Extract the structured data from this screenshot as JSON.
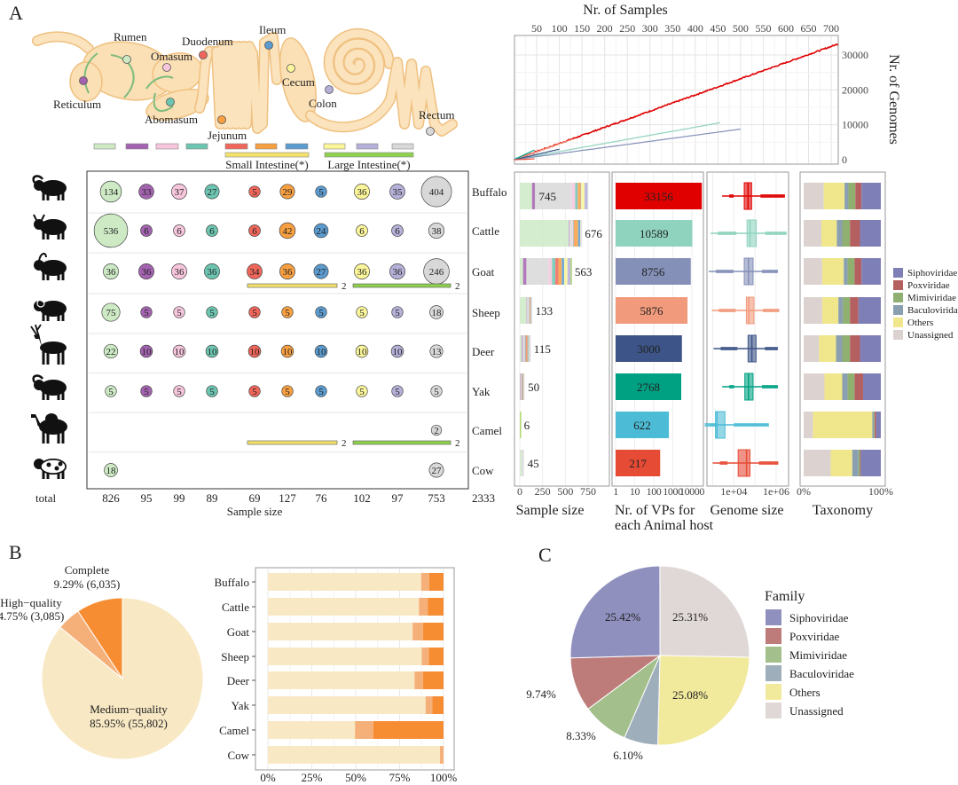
{
  "panel_labels": {
    "a": "A",
    "b": "B",
    "c": "C"
  },
  "gut": {
    "organs": [
      {
        "name": "Rumen",
        "color": "#cdeac5"
      },
      {
        "name": "Reticulum",
        "color": "#a463b0"
      },
      {
        "name": "Omasum",
        "color": "#f7c6dd"
      },
      {
        "name": "Abomasum",
        "color": "#6cc5b0"
      },
      {
        "name": "Duodenum",
        "color": "#f0665a"
      },
      {
        "name": "Jejunum",
        "color": "#f8a040"
      },
      {
        "name": "Ileum",
        "color": "#5b9bcf"
      },
      {
        "name": "Cecum",
        "color": "#fbf69a"
      },
      {
        "name": "Colon",
        "color": "#b4b0d8"
      },
      {
        "name": "Rectum",
        "color": "#d8d8d8"
      }
    ],
    "groups": [
      {
        "label": "Small Intestine(*)",
        "color": "#f5e26a"
      },
      {
        "label": "Large Intestine(*)",
        "color": "#8fd14f"
      }
    ]
  },
  "animals": [
    {
      "name": "Buffalo",
      "icon": "buffalo-icon"
    },
    {
      "name": "Cattle",
      "icon": "cattle-icon"
    },
    {
      "name": "Goat",
      "icon": "goat-icon"
    },
    {
      "name": "Sheep",
      "icon": "sheep-icon"
    },
    {
      "name": "Deer",
      "icon": "deer-icon"
    },
    {
      "name": "Yak",
      "icon": "yak-icon"
    },
    {
      "name": "Camel",
      "icon": "camel-icon"
    },
    {
      "name": "Cow",
      "icon": "cow-icon"
    }
  ],
  "chart_data": [
    {
      "id": "sample_bubbles",
      "type": "bubble",
      "rows": [
        "Buffalo",
        "Cattle",
        "Goat",
        "Sheep",
        "Deer",
        "Yak",
        "Camel",
        "Cow"
      ],
      "columns": [
        "Rumen",
        "Reticulum",
        "Omasum",
        "Abomasum",
        "Duodenum",
        "Jejunum",
        "Ileum",
        "Cecum",
        "Colon",
        "Rectum"
      ],
      "values": [
        [
          134,
          33,
          37,
          27,
          5,
          29,
          5,
          36,
          35,
          404
        ],
        [
          536,
          6,
          6,
          6,
          6,
          42,
          24,
          6,
          6,
          38
        ],
        [
          36,
          36,
          36,
          36,
          34,
          36,
          27,
          36,
          36,
          246
        ],
        [
          75,
          5,
          5,
          5,
          5,
          5,
          5,
          5,
          5,
          18
        ],
        [
          22,
          10,
          10,
          10,
          10,
          10,
          10,
          10,
          10,
          13
        ],
        [
          5,
          5,
          5,
          5,
          5,
          5,
          5,
          5,
          5,
          5
        ],
        [
          null,
          null,
          null,
          null,
          null,
          null,
          null,
          null,
          null,
          2
        ],
        [
          18,
          null,
          null,
          null,
          null,
          null,
          null,
          null,
          null,
          27
        ]
      ],
      "pooled": [
        {
          "row": "Goat",
          "group": "Small Intestine(*)",
          "value": 2
        },
        {
          "row": "Goat",
          "group": "Large Intestine(*)",
          "value": 2
        },
        {
          "row": "Camel",
          "group": "Small Intestine(*)",
          "value": 2
        },
        {
          "row": "Camel",
          "group": "Large Intestine(*)",
          "value": 2
        }
      ],
      "column_totals": [
        "826",
        "95",
        "99",
        "89",
        "69",
        "127",
        "76",
        "102",
        "97",
        "753"
      ],
      "grand_total": "2333",
      "row_total_label": "total",
      "xlabel": "Sample size"
    },
    {
      "id": "accumulation",
      "type": "line",
      "title": "Nr. of Samples",
      "ylabel": "Nr. of Genomes",
      "xticks": [
        "50",
        "100",
        "150",
        "200",
        "250",
        "300",
        "350",
        "400",
        "450",
        "500",
        "550",
        "600",
        "650",
        "700"
      ],
      "yticks": [
        "0",
        "10000",
        "20000",
        "30000"
      ],
      "xlim": [
        0,
        720
      ],
      "ylim": [
        0,
        34000
      ],
      "grid": true,
      "series": [
        {
          "color": "#e00000",
          "x": [
            0,
            715
          ],
          "y": [
            0,
            33156
          ]
        },
        {
          "color": "#8fd3bf",
          "x": [
            0,
            455
          ],
          "y": [
            0,
            10589
          ]
        },
        {
          "color": "#8490b8",
          "x": [
            0,
            500
          ],
          "y": [
            0,
            8756
          ]
        },
        {
          "color": "#f29a7c",
          "x": [
            0,
            130
          ],
          "y": [
            0,
            5876
          ]
        },
        {
          "color": "#3c5487",
          "x": [
            0,
            100
          ],
          "y": [
            0,
            3000
          ]
        },
        {
          "color": "#00a183",
          "x": [
            0,
            45
          ],
          "y": [
            0,
            2768
          ]
        },
        {
          "color": "#4cbcd6",
          "x": [
            0,
            6
          ],
          "y": [
            0,
            622
          ]
        },
        {
          "color": "#e64b35",
          "x": [
            0,
            45
          ],
          "y": [
            0,
            217
          ]
        }
      ]
    },
    {
      "id": "sample_size_bars",
      "type": "bar",
      "stacked": true,
      "xlabel": "Sample size",
      "xticks": [
        "0",
        "250",
        "500",
        "750"
      ],
      "xlim": [
        0,
        950
      ],
      "categories": [
        "Buffalo",
        "Cattle",
        "Goat",
        "Sheep",
        "Deer",
        "Yak",
        "Camel",
        "Cow"
      ],
      "totals": [
        "745",
        "676",
        "563",
        "133",
        "115",
        "50",
        "6",
        "45"
      ]
    },
    {
      "id": "vp_bars",
      "type": "bar",
      "xscale": "log",
      "xlabel": "Nr. of VPs for",
      "xlabel2": "each Animal host",
      "xticks": [
        "1",
        "10",
        "100",
        "1000",
        "10000"
      ],
      "categories": [
        "Buffalo",
        "Cattle",
        "Goat",
        "Sheep",
        "Deer",
        "Yak",
        "Camel",
        "Cow"
      ],
      "values": [
        33156,
        10589,
        8756,
        5876,
        3000,
        2768,
        622,
        217
      ],
      "labels": [
        "33156",
        "10589",
        "8756",
        "5876",
        "3000",
        "2768",
        "622",
        "217"
      ],
      "colors": [
        "#e00000",
        "#8fd3bf",
        "#8490b8",
        "#f29a7c",
        "#3c5487",
        "#00a183",
        "#4cbcd6",
        "#e64b35"
      ]
    },
    {
      "id": "genome_size",
      "type": "box",
      "xscale": "log",
      "xlabel": "Genome size",
      "xticks": [
        "1e+04",
        "1e+06"
      ],
      "categories": [
        "Buffalo",
        "Cattle",
        "Goat",
        "Sheep",
        "Deer",
        "Yak",
        "Camel",
        "Cow"
      ],
      "stats": [
        {
          "min": 2800,
          "q1": 31000,
          "median": 47000,
          "q3": 69000,
          "max": 2600000
        },
        {
          "min": 800,
          "q1": 42000,
          "median": 58000,
          "q3": 115000,
          "max": 3100000
        },
        {
          "min": 650,
          "q1": 31000,
          "median": 49000,
          "q3": 81000,
          "max": 1200000
        },
        {
          "min": 900,
          "q1": 39000,
          "median": 51000,
          "q3": 89000,
          "max": 1400000
        },
        {
          "min": 1100,
          "q1": 47000,
          "median": 71000,
          "q3": 112000,
          "max": 1200000
        },
        {
          "min": 2800,
          "q1": 33000,
          "median": 49000,
          "q3": 81000,
          "max": 1200000
        },
        {
          "min": 700,
          "q1": 1350,
          "median": 1600,
          "q3": 3800,
          "max": 450000
        },
        {
          "min": 1000,
          "q1": 16000,
          "median": 40000,
          "q3": 58000,
          "max": 1260000
        }
      ]
    },
    {
      "id": "taxonomy",
      "type": "bar",
      "stacked": true,
      "percent": true,
      "xlabel": "Taxonomy",
      "xticks": [
        "0%",
        "100%"
      ],
      "stack_order": [
        "Unassigned",
        "Others",
        "Baculoviridae",
        "Mimiviridae",
        "Poxviridae",
        "Siphoviridae"
      ],
      "categories": [
        "Buffalo",
        "Cattle",
        "Goat",
        "Sheep",
        "Deer",
        "Yak",
        "Camel",
        "Cow"
      ],
      "fractions": [
        [
          0.26,
          0.27,
          0.05,
          0.09,
          0.08,
          0.25
        ],
        [
          0.23,
          0.2,
          0.07,
          0.1,
          0.13,
          0.27
        ],
        [
          0.24,
          0.28,
          0.05,
          0.09,
          0.09,
          0.25
        ],
        [
          0.24,
          0.21,
          0.06,
          0.09,
          0.11,
          0.29
        ],
        [
          0.2,
          0.22,
          0.08,
          0.1,
          0.13,
          0.27
        ],
        [
          0.27,
          0.23,
          0.07,
          0.09,
          0.11,
          0.23
        ],
        [
          0.12,
          0.77,
          0.02,
          0.01,
          0.02,
          0.06
        ],
        [
          0.35,
          0.28,
          0.08,
          0.02,
          0.01,
          0.26
        ]
      ],
      "legend": [
        {
          "label": "Siphoviridae",
          "color": "#7f7fb8"
        },
        {
          "label": "Poxviridae",
          "color": "#b56060"
        },
        {
          "label": "Mimiviridae",
          "color": "#8fb070"
        },
        {
          "label": "Baculoviridae",
          "color": "#8aa0b0"
        },
        {
          "label": "Others",
          "color": "#f0e68c"
        },
        {
          "label": "Unassigned",
          "color": "#dcd2d0"
        }
      ],
      "legend_position": "right"
    },
    {
      "id": "quality_pie",
      "type": "pie",
      "slices": [
        {
          "label": "Complete",
          "value_label": "9.29% (6,035)",
          "percent": 9.29,
          "count": 6035,
          "color": "#f78d33"
        },
        {
          "label": "High−quality",
          "value_label": "4.75% (3,085)",
          "percent": 4.75,
          "count": 3085,
          "color": "#f5b07a"
        },
        {
          "label": "Medium−quality",
          "value_label": "85.95% (55,802)",
          "percent": 85.95,
          "count": 55802,
          "color": "#f8e8c4"
        }
      ]
    },
    {
      "id": "quality_bars",
      "type": "bar",
      "stacked": true,
      "percent": true,
      "xticks": [
        "0%",
        "25%",
        "50%",
        "75%",
        "100%"
      ],
      "categories": [
        "Buffalo",
        "Cattle",
        "Goat",
        "Sheep",
        "Deer",
        "Yak",
        "Camel",
        "Cow"
      ],
      "series": [
        {
          "color": "#f8e8c4",
          "values": [
            87.3,
            86.0,
            82.4,
            87.6,
            83.5,
            89.8,
            49.6,
            98.0
          ]
        },
        {
          "color": "#f5b07a",
          "values": [
            4.6,
            5.0,
            5.9,
            4.1,
            4.8,
            3.8,
            10.4,
            2.0
          ]
        },
        {
          "color": "#f78d33",
          "values": [
            8.1,
            9.0,
            11.7,
            8.3,
            11.7,
            6.4,
            40.0,
            0.0
          ]
        }
      ],
      "grid": true
    },
    {
      "id": "family_pie",
      "type": "pie",
      "legend_title": "Family",
      "legend_position": "right",
      "slices": [
        {
          "label": "Unassigned",
          "percent": 25.31,
          "value_label": "25.31%",
          "color": "#dfd8d6"
        },
        {
          "label": "Others",
          "percent": 25.08,
          "value_label": "25.08%",
          "color": "#f1e99c"
        },
        {
          "label": "Baculoviridae",
          "percent": 6.1,
          "value_label": "6.10%",
          "color": "#9eaeba"
        },
        {
          "label": "Mimiviridae",
          "percent": 8.33,
          "value_label": "8.33%",
          "color": "#a3bf8c"
        },
        {
          "label": "Poxviridae",
          "percent": 9.74,
          "value_label": "9.74%",
          "color": "#bd7c7a"
        },
        {
          "label": "Siphoviridae",
          "percent": 25.42,
          "value_label": "25.42%",
          "color": "#9090bf"
        }
      ],
      "legend_order": [
        "Siphoviridae",
        "Poxviridae",
        "Mimiviridae",
        "Baculoviridae",
        "Others",
        "Unassigned"
      ]
    }
  ]
}
